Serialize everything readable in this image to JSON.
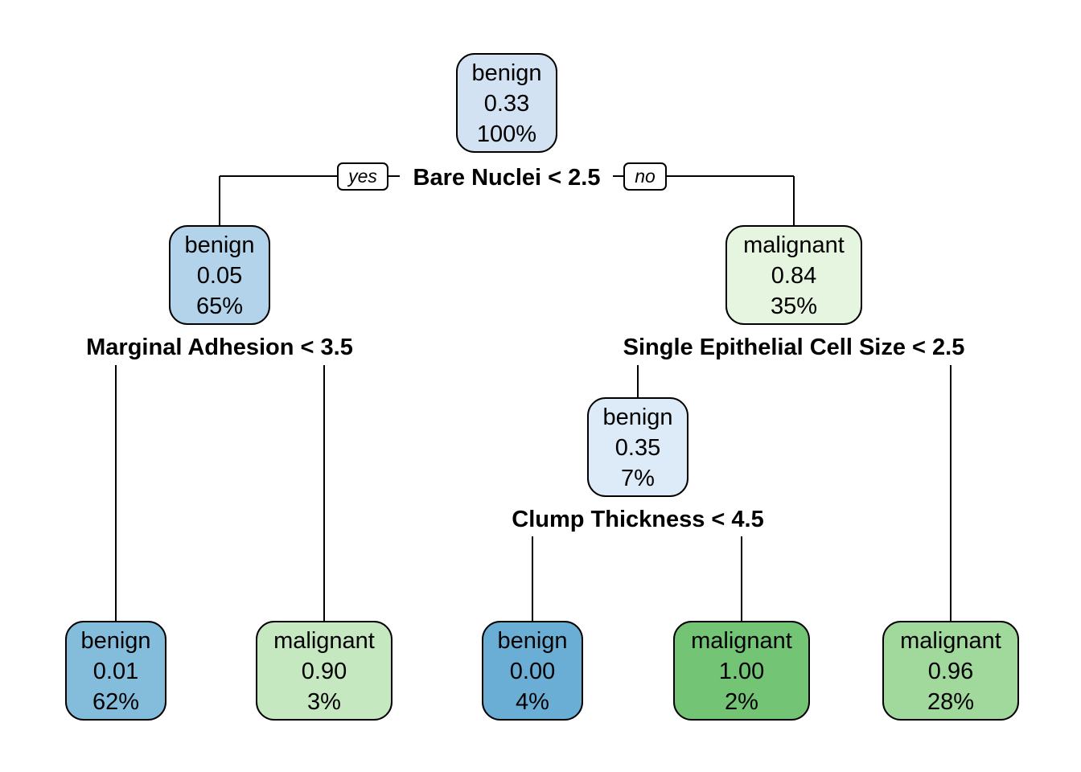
{
  "tree": {
    "edge_labels": {
      "yes": "yes",
      "no": "no"
    },
    "splits": {
      "root": "Bare Nuclei < 2.5",
      "n2": "Marginal Adhesion < 3.5",
      "n3": "Single Epithelial Cell Size < 2.5",
      "n6": "Clump Thickness < 4.5"
    },
    "nodes": {
      "root": {
        "class": "benign",
        "prob": "0.33",
        "pct": "100%",
        "color": "#d2e2f3"
      },
      "n2": {
        "class": "benign",
        "prob": "0.05",
        "pct": "65%",
        "color": "#b3d3ea"
      },
      "n3": {
        "class": "malignant",
        "prob": "0.84",
        "pct": "35%",
        "color": "#e6f5e0"
      },
      "n6": {
        "class": "benign",
        "prob": "0.35",
        "pct": "7%",
        "color": "#ddeaf7"
      },
      "leaf1": {
        "class": "benign",
        "prob": "0.01",
        "pct": "62%",
        "color": "#84bcdb"
      },
      "leaf2": {
        "class": "malignant",
        "prob": "0.90",
        "pct": "3%",
        "color": "#c6e8c0"
      },
      "leaf3": {
        "class": "benign",
        "prob": "0.00",
        "pct": "4%",
        "color": "#6aaed6"
      },
      "leaf4": {
        "class": "malignant",
        "prob": "1.00",
        "pct": "2%",
        "color": "#74c476"
      },
      "leaf5": {
        "class": "malignant",
        "prob": "0.96",
        "pct": "28%",
        "color": "#a1d89b"
      }
    }
  }
}
